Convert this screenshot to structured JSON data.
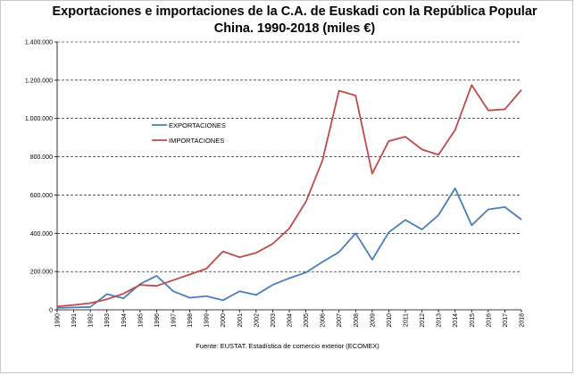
{
  "chart_data": {
    "type": "line",
    "title_line1": "Exportaciones e importaciones de la C.A. de Euskadi con la  República Popular",
    "title_line2": "China. 1990-2018 (miles €)",
    "xlabel": "",
    "ylabel": "",
    "ylim": [
      0,
      1400000
    ],
    "y_ticks": [
      "0",
      "200.000",
      "400.000",
      "600.000",
      "800.000",
      "1.000.000",
      "1.200.000",
      "1.400.000"
    ],
    "y_tick_values": [
      0,
      200000,
      400000,
      600000,
      800000,
      1000000,
      1200000,
      1400000
    ],
    "categories": [
      "1990",
      "1991",
      "1992",
      "1993",
      "1994",
      "1995",
      "1996",
      "1997",
      "1998",
      "1999",
      "2000",
      "2001",
      "2002",
      "2003",
      "2004",
      "2005",
      "2006",
      "2007",
      "2008",
      "2009",
      "2010",
      "2011",
      "2012",
      "2013",
      "2014",
      "2015",
      "2016",
      "2017",
      "2018"
    ],
    "series": [
      {
        "name": "EXPORTACIONES",
        "color": "#4a7ebb",
        "values": [
          10000,
          12000,
          15000,
          82000,
          60000,
          135000,
          178000,
          97000,
          63000,
          72000,
          50000,
          97000,
          78000,
          130000,
          165000,
          195000,
          250000,
          302000,
          400000,
          262000,
          405000,
          470000,
          420000,
          495000,
          635000,
          442000,
          525000,
          537000,
          472000
        ]
      },
      {
        "name": "IMPORTACIONES",
        "color": "#be4b48",
        "values": [
          18000,
          25000,
          35000,
          55000,
          85000,
          130000,
          125000,
          155000,
          185000,
          215000,
          305000,
          275000,
          298000,
          345000,
          425000,
          565000,
          780000,
          1145000,
          1120000,
          712000,
          882000,
          905000,
          838000,
          810000,
          940000,
          1175000,
          1042000,
          1048000,
          1150000
        ]
      }
    ],
    "grid": true,
    "legend_position": "upper-left inside",
    "source": "Fuente: EUSTAT. Estadística de comercio exterior (ECOMEX)"
  }
}
